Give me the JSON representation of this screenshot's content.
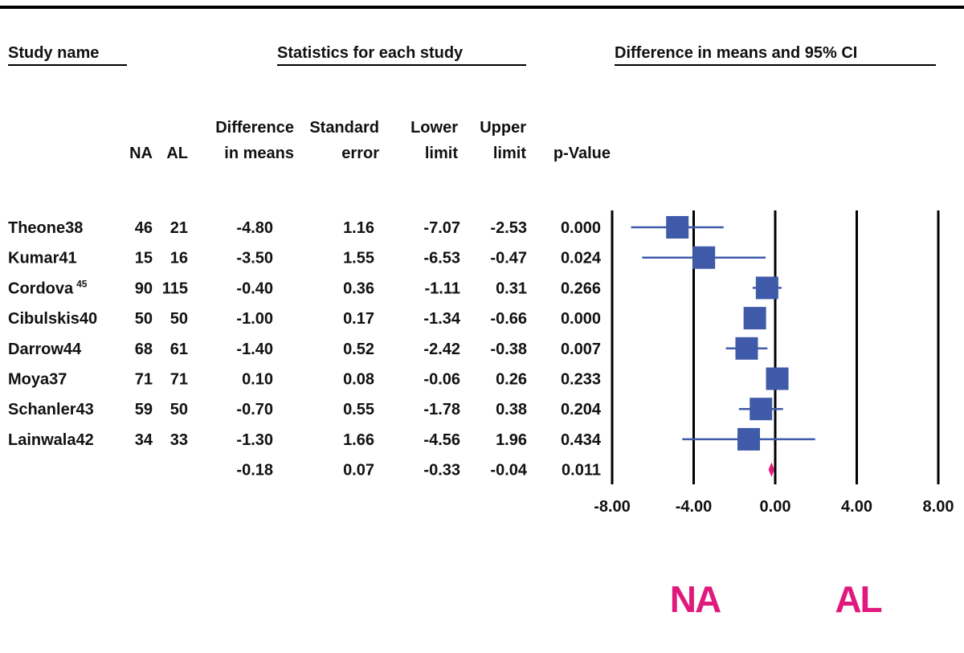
{
  "chart_data": {
    "type": "forest",
    "headings": [
      "Study name",
      "Statistics for each study",
      "Difference in means and 95% CI"
    ],
    "column_headers": [
      [
        "NA"
      ],
      [
        "AL"
      ],
      [
        "Difference",
        "in means"
      ],
      [
        "Standard",
        "error"
      ],
      [
        "Lower",
        "limit"
      ],
      [
        "Upper",
        "limit"
      ],
      [
        "p-Value"
      ]
    ],
    "categories": [
      "Theone38",
      "Kumar41",
      "Cordova",
      "Cibulskis40",
      "Darrow44",
      "Moya37",
      "Schanler43",
      "Lainwala42",
      null
    ],
    "category_superscripts": [
      null,
      null,
      "45",
      null,
      null,
      null,
      null,
      null,
      null
    ],
    "na": [
      46,
      15,
      90,
      50,
      68,
      71,
      59,
      34,
      null
    ],
    "al": [
      21,
      16,
      115,
      50,
      61,
      71,
      50,
      33,
      null
    ],
    "diff": {
      "values": [
        -4.8,
        -3.5,
        -0.4,
        -1.0,
        -1.4,
        0.1,
        -0.7,
        -1.3,
        -0.18
      ],
      "value_labels": [
        "-4.80",
        "-3.50",
        "-0.40",
        "-1.00",
        "-1.40",
        "0.10",
        "-0.70",
        "-1.30",
        "-0.18"
      ]
    },
    "se": {
      "values": [
        1.16,
        1.55,
        0.36,
        0.17,
        0.52,
        0.08,
        0.55,
        1.66,
        0.07
      ],
      "value_labels": [
        "1.16",
        "1.55",
        "0.36",
        "0.17",
        "0.52",
        "0.08",
        "0.55",
        "1.66",
        "0.07"
      ]
    },
    "lower": {
      "values": [
        -7.07,
        -6.53,
        -1.11,
        -1.34,
        -2.42,
        -0.06,
        -1.78,
        -4.56,
        -0.33
      ],
      "value_labels": [
        "-7.07",
        "-6.53",
        "-1.11",
        "-1.34",
        "-2.42",
        "-0.06",
        "-1.78",
        "-4.56",
        "-0.33"
      ]
    },
    "upper": {
      "values": [
        -2.53,
        -0.47,
        0.31,
        -0.66,
        -0.38,
        0.26,
        0.38,
        1.96,
        -0.04
      ],
      "value_labels": [
        "-2.53",
        "-0.47",
        "0.31",
        "-0.66",
        "-0.38",
        "0.26",
        "0.38",
        "1.96",
        "-0.04"
      ]
    },
    "p": {
      "values": [
        0.0,
        0.024,
        0.266,
        0.0,
        0.007,
        0.233,
        0.204,
        0.434,
        0.011
      ],
      "value_labels": [
        "0.000",
        "0.024",
        "0.266",
        "0.000",
        "0.007",
        "0.233",
        "0.204",
        "0.434",
        "0.011"
      ]
    },
    "xlim": [
      -8,
      8
    ],
    "xticks": [
      {
        "value": -8,
        "label": "-8.00"
      },
      {
        "value": -4,
        "label": "-4.00"
      },
      {
        "value": 0,
        "label": "0.00"
      },
      {
        "value": 4,
        "label": "4.00"
      },
      {
        "value": 8,
        "label": "8.00"
      }
    ],
    "favours": [
      "NA",
      "AL"
    ],
    "marker_color": "#3f5aa8",
    "summary_color": "#e0197d"
  }
}
